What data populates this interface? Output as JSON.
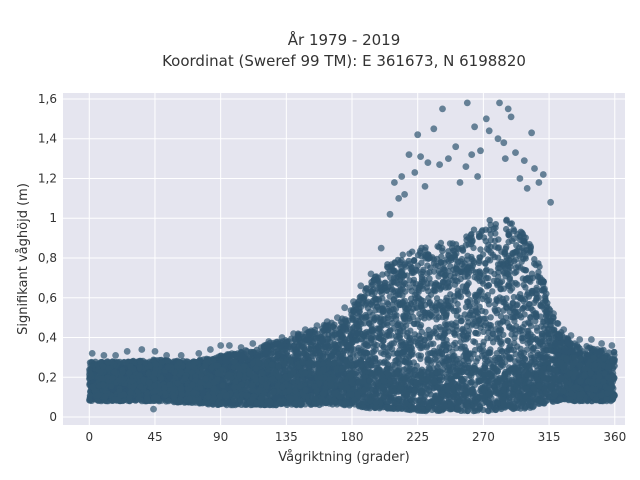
{
  "chart_data": {
    "type": "scatter",
    "title": "År 1979 - 2019",
    "subtitle": "Koordinat (Sweref 99 TM): E 361673, N 6198820",
    "xlabel": "Vågriktning (grader)",
    "ylabel": "Signifikant våghöjd (m)",
    "xlim": [
      -18,
      367
    ],
    "ylim": [
      -0.04,
      1.63
    ],
    "x_ticks": [
      0,
      45,
      90,
      135,
      180,
      225,
      270,
      315,
      360
    ],
    "x_tick_labels": [
      "0",
      "45",
      "90",
      "135",
      "180",
      "225",
      "270",
      "315",
      "360"
    ],
    "y_ticks": [
      0,
      0.2,
      0.4,
      0.6,
      0.8,
      1.0,
      1.2,
      1.4,
      1.6
    ],
    "y_tick_labels": [
      "0",
      "0,2",
      "0,4",
      "0,6",
      "0,8",
      "1",
      "1,2",
      "1,4",
      "1,6"
    ],
    "grid": true,
    "marker_color": "#2f5670",
    "background_color": "#e5e5ef",
    "series": [
      {
        "envelope_direction": [
          0,
          20,
          45,
          70,
          90,
          110,
          135,
          155,
          175,
          185,
          195,
          205,
          215,
          225,
          235,
          245,
          255,
          265,
          275,
          285,
          295,
          305,
          310,
          315,
          320,
          325,
          330,
          340,
          350,
          360
        ],
        "envelope_upper_height": [
          0.28,
          0.28,
          0.29,
          0.28,
          0.31,
          0.34,
          0.4,
          0.45,
          0.5,
          0.6,
          0.7,
          0.78,
          0.82,
          0.85,
          0.87,
          0.88,
          0.9,
          0.95,
          1.0,
          1.0,
          0.95,
          0.85,
          0.72,
          0.58,
          0.48,
          0.42,
          0.38,
          0.36,
          0.34,
          0.33
        ],
        "envelope_lower_height": [
          0.08,
          0.08,
          0.08,
          0.07,
          0.06,
          0.06,
          0.06,
          0.06,
          0.06,
          0.05,
          0.04,
          0.04,
          0.04,
          0.03,
          0.03,
          0.03,
          0.03,
          0.03,
          0.03,
          0.04,
          0.04,
          0.05,
          0.06,
          0.07,
          0.08,
          0.08,
          0.08,
          0.08,
          0.08,
          0.08
        ],
        "outlier_points": [
          [
            259,
            1.58
          ],
          [
            272,
            1.5
          ],
          [
            281,
            1.58
          ],
          [
            287,
            1.55
          ],
          [
            289,
            1.51
          ],
          [
            242,
            1.55
          ],
          [
            225,
            1.42
          ],
          [
            219,
            1.32
          ],
          [
            236,
            1.45
          ],
          [
            264,
            1.46
          ],
          [
            274,
            1.44
          ],
          [
            303,
            1.43
          ],
          [
            251,
            1.36
          ],
          [
            280,
            1.4
          ],
          [
            284,
            1.38
          ],
          [
            268,
            1.34
          ],
          [
            246,
            1.3
          ],
          [
            262,
            1.32
          ],
          [
            292,
            1.33
          ],
          [
            298,
            1.29
          ],
          [
            227,
            1.31
          ],
          [
            232,
            1.28
          ],
          [
            240,
            1.27
          ],
          [
            258,
            1.26
          ],
          [
            285,
            1.3
          ],
          [
            305,
            1.25
          ],
          [
            311,
            1.22
          ],
          [
            214,
            1.21
          ],
          [
            223,
            1.23
          ],
          [
            209,
            1.18
          ],
          [
            212,
            1.1
          ],
          [
            295,
            1.2
          ],
          [
            308,
            1.18
          ],
          [
            266,
            1.21
          ],
          [
            300,
            1.15
          ],
          [
            254,
            1.18
          ],
          [
            230,
            1.16
          ],
          [
            316,
            1.08
          ],
          [
            216,
            1.12
          ],
          [
            206,
            1.02
          ],
          [
            200,
            0.85
          ],
          [
            193,
            0.72
          ],
          [
            186,
            0.66
          ],
          [
            181,
            0.58
          ],
          [
            175,
            0.55
          ],
          [
            170,
            0.5
          ],
          [
            163,
            0.48
          ],
          [
            156,
            0.46
          ],
          [
            148,
            0.44
          ],
          [
            140,
            0.42
          ],
          [
            132,
            0.4
          ],
          [
            123,
            0.38
          ],
          [
            112,
            0.37
          ],
          [
            104,
            0.35
          ],
          [
            96,
            0.36
          ],
          [
            90,
            0.36
          ],
          [
            83,
            0.34
          ],
          [
            75,
            0.32
          ],
          [
            63,
            0.31
          ],
          [
            53,
            0.31
          ],
          [
            45,
            0.33
          ],
          [
            36,
            0.34
          ],
          [
            26,
            0.33
          ],
          [
            18,
            0.31
          ],
          [
            10,
            0.31
          ],
          [
            2,
            0.32
          ],
          [
            44,
            0.04
          ],
          [
            325,
            0.44
          ],
          [
            330,
            0.41
          ],
          [
            336,
            0.39
          ],
          [
            344,
            0.39
          ],
          [
            351,
            0.37
          ],
          [
            358,
            0.36
          ],
          [
            321,
            0.47
          ],
          [
            318,
            0.52
          ],
          [
            313,
            0.62
          ]
        ]
      }
    ]
  }
}
